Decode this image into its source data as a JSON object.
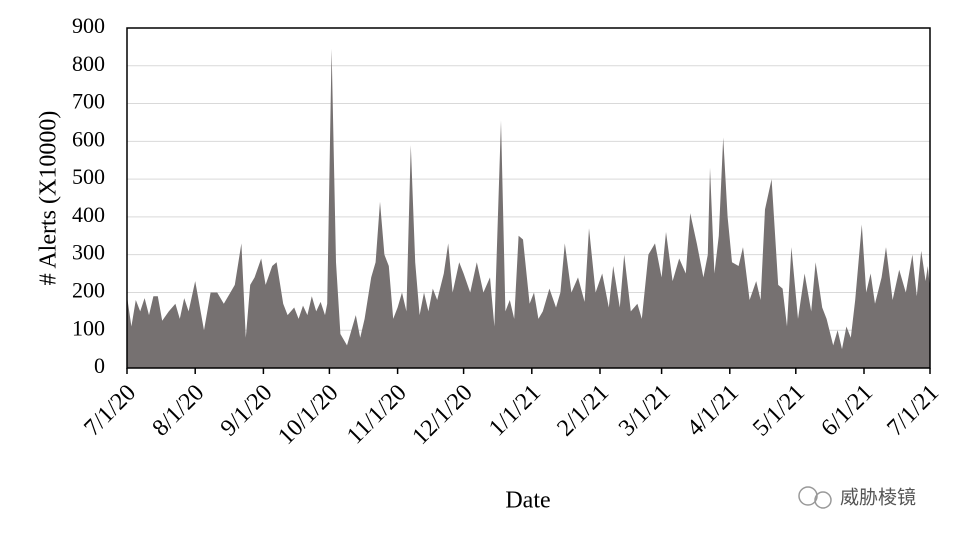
{
  "chart_data": {
    "type": "area",
    "color": "#767171",
    "grid": true,
    "y_label": "# Alerts (X10000)",
    "x_label": "Date",
    "watermark": "威胁棱镜",
    "ylim": [
      0,
      900
    ],
    "yticks": [
      0,
      100,
      200,
      300,
      400,
      500,
      600,
      700,
      800,
      900
    ],
    "xlim": [
      "7/1/20",
      "7/1/21"
    ],
    "xticks": [
      "7/1/20",
      "8/1/20",
      "9/1/20",
      "10/1/20",
      "11/1/20",
      "12/1/20",
      "1/1/21",
      "2/1/21",
      "3/1/21",
      "4/1/21",
      "5/1/21",
      "6/1/21",
      "7/1/21"
    ],
    "x": [
      "7/1/20",
      "7/3/20",
      "7/5/20",
      "7/7/20",
      "7/9/20",
      "7/11/20",
      "7/13/20",
      "7/15/20",
      "7/17/20",
      "7/20/20",
      "7/23/20",
      "7/25/20",
      "7/27/20",
      "7/29/20",
      "8/1/20",
      "8/5/20",
      "8/8/20",
      "8/11/20",
      "8/14/20",
      "8/17/20",
      "8/19/20",
      "8/22/20",
      "8/24/20",
      "8/26/20",
      "8/28/20",
      "8/31/20",
      "9/2/20",
      "9/5/20",
      "9/7/20",
      "9/10/20",
      "9/12/20",
      "9/15/20",
      "9/17/20",
      "9/19/20",
      "9/21/20",
      "9/23/20",
      "9/25/20",
      "9/27/20",
      "9/29/20",
      "9/30/20",
      "10/2/20",
      "10/4/20",
      "10/6/20",
      "10/9/20",
      "10/11/20",
      "10/13/20",
      "10/15/20",
      "10/17/20",
      "10/20/20",
      "10/22/20",
      "10/24/20",
      "10/26/20",
      "10/28/20",
      "10/30/20",
      "11/1/20",
      "11/3/20",
      "11/5/20",
      "11/7/20",
      "11/9/20",
      "11/11/20",
      "11/13/20",
      "11/15/20",
      "11/17/20",
      "11/19/20",
      "11/22/20",
      "11/24/20",
      "11/26/20",
      "11/29/20",
      "12/1/20",
      "12/4/20",
      "12/7/20",
      "12/10/20",
      "12/13/20",
      "12/15/20",
      "12/18/20",
      "12/20/20",
      "12/22/20",
      "12/24/20",
      "12/26/20",
      "12/28/20",
      "12/31/20",
      "1/2/21",
      "1/4/21",
      "1/6/21",
      "1/9/21",
      "1/12/21",
      "1/14/21",
      "1/16/21",
      "1/19/21",
      "1/22/21",
      "1/25/21",
      "1/27/21",
      "1/30/21",
      "2/2/21",
      "2/5/21",
      "2/7/21",
      "2/10/21",
      "2/12/21",
      "2/15/21",
      "2/18/21",
      "2/20/21",
      "2/23/21",
      "2/26/21",
      "3/1/21",
      "3/3/21",
      "3/6/21",
      "3/9/21",
      "3/12/21",
      "3/14/21",
      "3/17/21",
      "3/20/21",
      "3/22/21",
      "3/23/21",
      "3/25/21",
      "3/27/21",
      "3/29/21",
      "3/31/21",
      "4/2/21",
      "4/5/21",
      "4/7/21",
      "4/10/21",
      "4/13/21",
      "4/15/21",
      "4/17/21",
      "4/20/21",
      "4/23/21",
      "4/25/21",
      "4/27/21",
      "4/29/21",
      "5/2/21",
      "5/5/21",
      "5/8/21",
      "5/10/21",
      "5/13/21",
      "5/15/21",
      "5/18/21",
      "5/20/21",
      "5/22/21",
      "5/24/21",
      "5/26/21",
      "5/28/21",
      "5/31/21",
      "6/2/21",
      "6/4/21",
      "6/6/21",
      "6/9/21",
      "6/11/21",
      "6/14/21",
      "6/17/21",
      "6/20/21",
      "6/23/21",
      "6/25/21",
      "6/27/21",
      "6/29/21",
      "6/30/21",
      "7/1/21"
    ],
    "values": [
      190,
      110,
      180,
      150,
      185,
      140,
      190,
      190,
      125,
      150,
      170,
      130,
      185,
      150,
      230,
      100,
      200,
      200,
      170,
      200,
      220,
      330,
      80,
      220,
      240,
      290,
      220,
      270,
      280,
      170,
      140,
      160,
      130,
      165,
      140,
      190,
      150,
      175,
      140,
      170,
      845,
      280,
      90,
      60,
      100,
      140,
      80,
      130,
      240,
      280,
      440,
      300,
      270,
      130,
      160,
      200,
      150,
      590,
      280,
      140,
      200,
      150,
      210,
      180,
      250,
      330,
      200,
      280,
      250,
      200,
      280,
      200,
      240,
      110,
      655,
      150,
      180,
      130,
      350,
      340,
      170,
      200,
      130,
      150,
      210,
      160,
      200,
      330,
      200,
      240,
      175,
      370,
      200,
      250,
      160,
      270,
      160,
      300,
      150,
      170,
      130,
      300,
      330,
      240,
      360,
      230,
      290,
      250,
      410,
      330,
      240,
      300,
      530,
      250,
      350,
      610,
      400,
      280,
      270,
      320,
      180,
      230,
      180,
      420,
      500,
      220,
      210,
      110,
      320,
      130,
      250,
      150,
      280,
      160,
      130,
      60,
      100,
      50,
      110,
      80,
      180,
      380,
      200,
      250,
      170,
      240,
      320,
      180,
      260,
      200,
      300,
      190,
      310,
      230,
      270,
      210
    ]
  }
}
